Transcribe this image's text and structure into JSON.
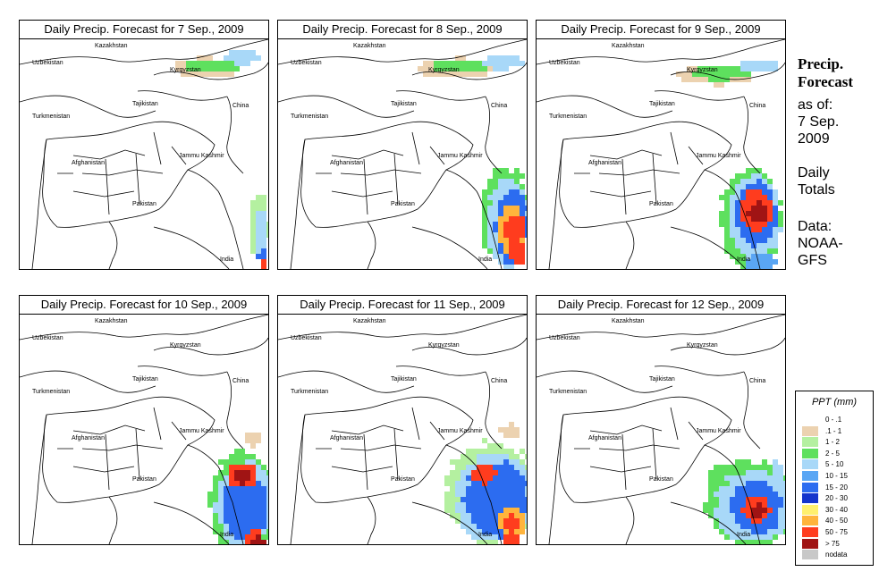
{
  "panels": [
    {
      "title": "Daily Precip. Forecast for  7 Sep., 2009"
    },
    {
      "title": "Daily Precip. Forecast for  8 Sep., 2009"
    },
    {
      "title": "Daily Precip. Forecast for  9 Sep., 2009"
    },
    {
      "title": "Daily Precip. Forecast for  10 Sep., 2009"
    },
    {
      "title": "Daily Precip. Forecast for  11 Sep., 2009"
    },
    {
      "title": "Daily Precip. Forecast for  12 Sep., 2009"
    }
  ],
  "map_labels": {
    "kazakhstan": "Kazakhstan",
    "uzbekistan": "Uzbekistan",
    "kyrgyzstan": "Kyrgyzstan",
    "tajikistan": "Tajikistan",
    "china": "China",
    "turkmenistan": "Turkmenistan",
    "afghanistan": "Afghanistan",
    "jammu_kashmir": "Jammu Kashmir",
    "pakistan": "Pakistan",
    "india": "India"
  },
  "side": {
    "title_line1": "Precip.",
    "title_line2": "Forecast",
    "asof": "as of:",
    "date_line1": "7 Sep.",
    "date_line2": "2009",
    "totals_line1": "Daily",
    "totals_line2": "Totals",
    "data_line1": "Data:",
    "data_line2": "NOAA-",
    "data_line3": "GFS"
  },
  "legend": {
    "title": "PPT (mm)",
    "items": [
      {
        "label": "0 - .1",
        "color": "#ffffff"
      },
      {
        "label": ".1 - 1",
        "color": "#ecd2b0"
      },
      {
        "label": "1 - 2",
        "color": "#b4f0a0"
      },
      {
        "label": "2 - 5",
        "color": "#5ee05e"
      },
      {
        "label": "5 - 10",
        "color": "#a8d8f8"
      },
      {
        "label": "10 - 15",
        "color": "#5aa6f4"
      },
      {
        "label": "15 - 20",
        "color": "#2c6cf0"
      },
      {
        "label": "20 - 30",
        "color": "#1434cc"
      },
      {
        "label": "30 - 40",
        "color": "#fff06e"
      },
      {
        "label": "40 - 50",
        "color": "#ffb43c"
      },
      {
        "label": "50 - 75",
        "color": "#ff3c1e"
      },
      {
        "label": "> 75",
        "color": "#a01414"
      },
      {
        "label": "nodata",
        "color": "#c8c8c8"
      }
    ]
  }
}
